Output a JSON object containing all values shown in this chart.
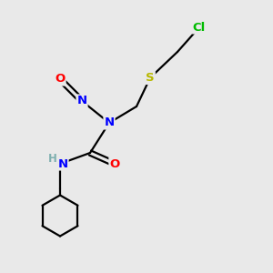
{
  "background_color": "#e9e9e9",
  "bond_color": "#000000",
  "atom_colors": {
    "N": "#0000ff",
    "O": "#ff0000",
    "S": "#b8b800",
    "Cl": "#00bb00",
    "C": "#000000",
    "H": "#7fb0b0"
  },
  "figsize": [
    3.0,
    3.0
  ],
  "dpi": 100,
  "xlim": [
    0,
    10
  ],
  "ylim": [
    0,
    10
  ],
  "lw": 1.6,
  "fontsize": 9.5
}
